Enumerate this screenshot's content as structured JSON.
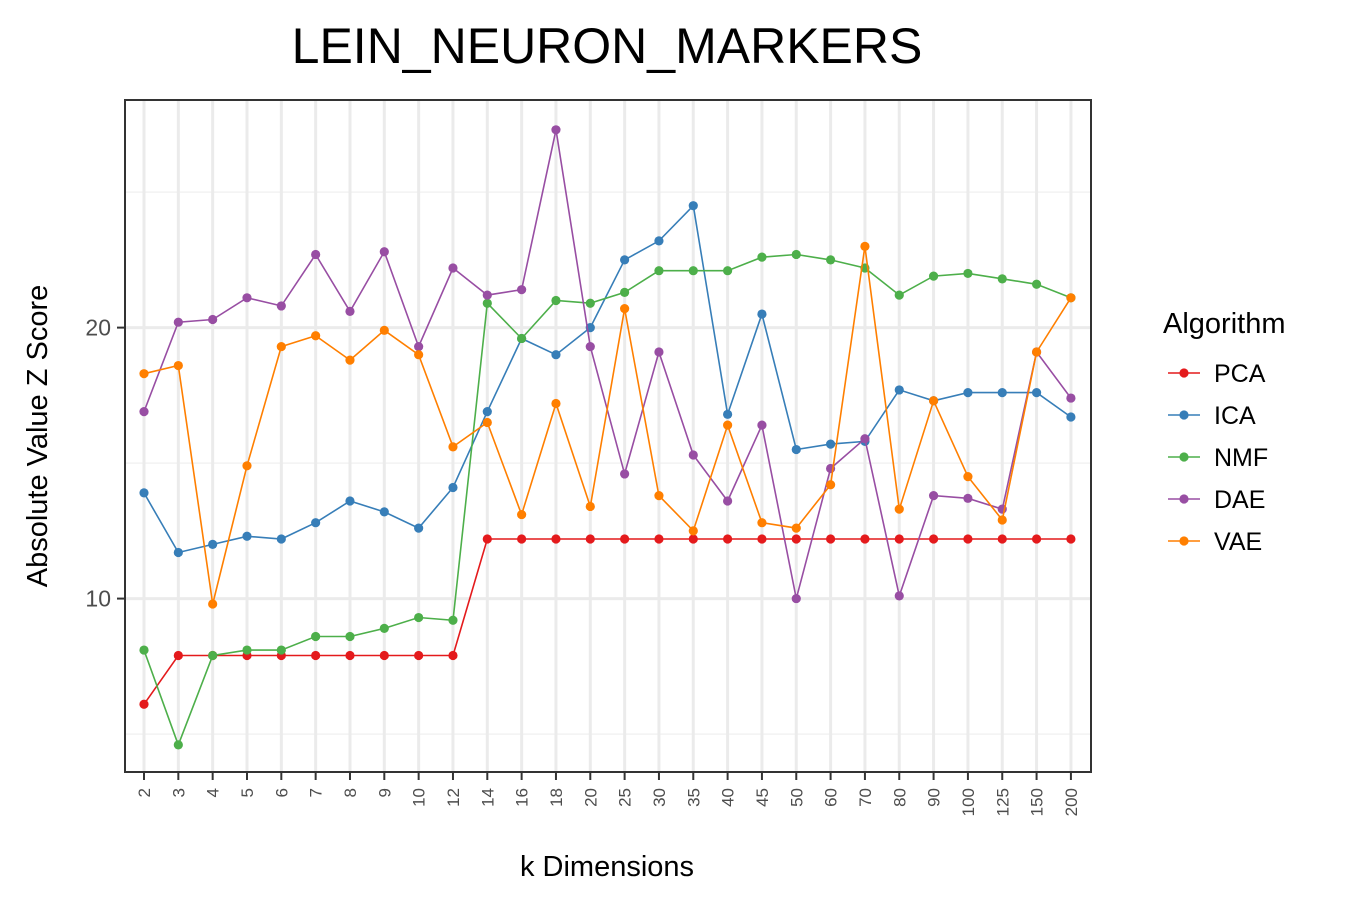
{
  "chart_data": {
    "type": "line",
    "title": "LEIN_NEURON_MARKERS",
    "xlabel": "k Dimensions",
    "ylabel": "Absolute Value Z Score",
    "categories": [
      "2",
      "3",
      "4",
      "5",
      "6",
      "7",
      "8",
      "9",
      "10",
      "12",
      "14",
      "16",
      "18",
      "20",
      "25",
      "30",
      "35",
      "40",
      "45",
      "50",
      "60",
      "70",
      "80",
      "90",
      "100",
      "125",
      "150",
      "200"
    ],
    "ylim": [
      3.6,
      28.4
    ],
    "yticks": [
      10,
      20
    ],
    "ytick_labels": [
      "10",
      "20"
    ],
    "minor_gridlines_y": [
      5,
      15,
      25
    ],
    "grid": true,
    "legend_title": "Algorithm",
    "legend_position": "right",
    "series": [
      {
        "name": "PCA",
        "color": "#e41a1c",
        "values": [
          6.1,
          7.9,
          7.9,
          7.9,
          7.9,
          7.9,
          7.9,
          7.9,
          7.9,
          7.9,
          12.2,
          12.2,
          12.2,
          12.2,
          12.2,
          12.2,
          12.2,
          12.2,
          12.2,
          12.2,
          12.2,
          12.2,
          12.2,
          12.2,
          12.2,
          12.2,
          12.2,
          12.2
        ]
      },
      {
        "name": "ICA",
        "color": "#377eb8",
        "values": [
          13.9,
          11.7,
          12.0,
          12.3,
          12.2,
          12.8,
          13.6,
          13.2,
          12.6,
          14.1,
          16.9,
          19.6,
          19.0,
          20.0,
          22.5,
          23.2,
          24.5,
          16.8,
          20.5,
          15.5,
          15.7,
          15.8,
          17.7,
          17.3,
          17.6,
          17.6,
          17.6,
          16.7
        ]
      },
      {
        "name": "NMF",
        "color": "#4daf4a",
        "values": [
          8.1,
          4.6,
          7.9,
          8.1,
          8.1,
          8.6,
          8.6,
          8.9,
          9.3,
          9.2,
          20.9,
          19.6,
          21.0,
          20.9,
          21.3,
          22.1,
          22.1,
          22.1,
          22.6,
          22.7,
          22.5,
          22.2,
          21.2,
          21.9,
          22.0,
          21.8,
          21.6,
          21.1
        ]
      },
      {
        "name": "DAE",
        "color": "#984ea3",
        "values": [
          16.9,
          20.2,
          20.3,
          21.1,
          20.8,
          22.7,
          20.6,
          22.8,
          19.3,
          22.2,
          21.2,
          21.4,
          27.3,
          19.3,
          14.6,
          19.1,
          15.3,
          13.6,
          16.4,
          10.0,
          14.8,
          15.9,
          10.1,
          13.8,
          13.7,
          13.3,
          19.1,
          17.4
        ]
      },
      {
        "name": "VAE",
        "color": "#ff7f00",
        "values": [
          18.3,
          18.6,
          9.8,
          14.9,
          19.3,
          19.7,
          18.8,
          19.9,
          19.0,
          15.6,
          16.5,
          13.1,
          17.2,
          13.4,
          20.7,
          13.8,
          12.5,
          16.4,
          12.8,
          12.6,
          14.2,
          23.0,
          13.3,
          17.3,
          14.5,
          12.9,
          19.1,
          21.1
        ]
      }
    ]
  }
}
